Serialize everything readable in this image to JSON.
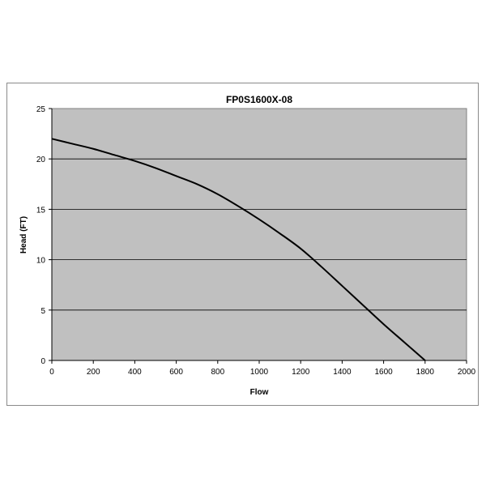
{
  "chart_data": {
    "type": "line",
    "title": "FP0S1600X-08",
    "xlabel": "Flow",
    "ylabel": "Head (FT)",
    "xlim": [
      0,
      2000
    ],
    "ylim": [
      0,
      25
    ],
    "xticks": [
      0,
      200,
      400,
      600,
      800,
      1000,
      1200,
      1400,
      1600,
      1800,
      2000
    ],
    "yticks": [
      0,
      5,
      10,
      15,
      20,
      25
    ],
    "grid": "horizontal",
    "legend": "none",
    "plot_background": "#c0c0c0",
    "line_color": "#000000",
    "series": [
      {
        "x": [
          0,
          100,
          200,
          300,
          400,
          500,
          600,
          700,
          800,
          900,
          1000,
          1100,
          1200,
          1300,
          1400,
          1500,
          1600,
          1700,
          1800
        ],
        "y": [
          22.0,
          21.5,
          21.0,
          20.4,
          19.8,
          19.1,
          18.3,
          17.5,
          16.5,
          15.3,
          14.0,
          12.6,
          11.1,
          9.3,
          7.4,
          5.5,
          3.6,
          1.8,
          0.0
        ]
      }
    ]
  }
}
